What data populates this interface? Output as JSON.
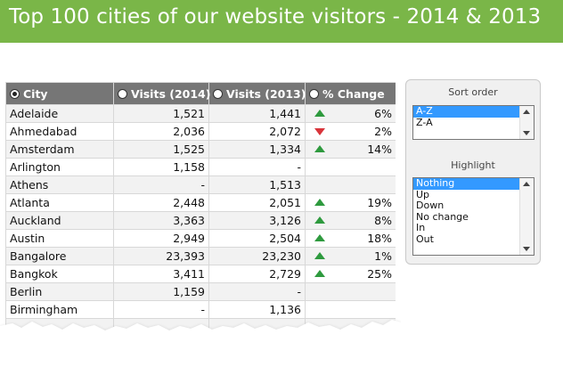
{
  "banner": {
    "title": "Top 100 cities of our website visitors - 2014 & 2013"
  },
  "table": {
    "columns": [
      "City",
      "Visits (2014)",
      "Visits (2013)",
      "% Change"
    ],
    "rows": [
      {
        "city": "Adelaide",
        "v2014": "1,521",
        "v2013": "1,441",
        "trend": "up",
        "change": "6%"
      },
      {
        "city": "Ahmedabad",
        "v2014": "2,036",
        "v2013": "2,072",
        "trend": "down",
        "change": "2%"
      },
      {
        "city": "Amsterdam",
        "v2014": "1,525",
        "v2013": "1,334",
        "trend": "up",
        "change": "14%"
      },
      {
        "city": "Arlington",
        "v2014": "1,158",
        "v2013": "-",
        "trend": "",
        "change": ""
      },
      {
        "city": "Athens",
        "v2014": "-",
        "v2013": "1,513",
        "trend": "",
        "change": ""
      },
      {
        "city": "Atlanta",
        "v2014": "2,448",
        "v2013": "2,051",
        "trend": "up",
        "change": "19%"
      },
      {
        "city": "Auckland",
        "v2014": "3,363",
        "v2013": "3,126",
        "trend": "up",
        "change": "8%"
      },
      {
        "city": "Austin",
        "v2014": "2,949",
        "v2013": "2,504",
        "trend": "up",
        "change": "18%"
      },
      {
        "city": "Bangalore",
        "v2014": "23,393",
        "v2013": "23,230",
        "trend": "up",
        "change": "1%"
      },
      {
        "city": "Bangkok",
        "v2014": "3,411",
        "v2013": "2,729",
        "trend": "up",
        "change": "25%"
      },
      {
        "city": "Berlin",
        "v2014": "1,159",
        "v2013": "-",
        "trend": "",
        "change": ""
      },
      {
        "city": "Birmingham",
        "v2014": "-",
        "v2013": "1,136",
        "trend": "",
        "change": ""
      },
      {
        "city": "",
        "v2014": "",
        "v2013": "",
        "trend": "",
        "change": ""
      }
    ]
  },
  "sort_panel": {
    "label": "Sort order",
    "options": [
      "A-Z",
      "Z-A"
    ],
    "selected": "A-Z"
  },
  "highlight_panel": {
    "label": "Highlight",
    "options": [
      "Nothing",
      "Up",
      "Down",
      "No change",
      "In",
      "Out"
    ],
    "selected": "Nothing"
  },
  "colors": {
    "banner": "#7ab648",
    "header": "#767676",
    "up_arrow": "#2e9a3e",
    "down_arrow": "#d9343a",
    "selection": "#3399ff"
  },
  "icons": {
    "up": "green-up-triangle",
    "down": "red-down-triangle",
    "sort": "radio-button"
  }
}
